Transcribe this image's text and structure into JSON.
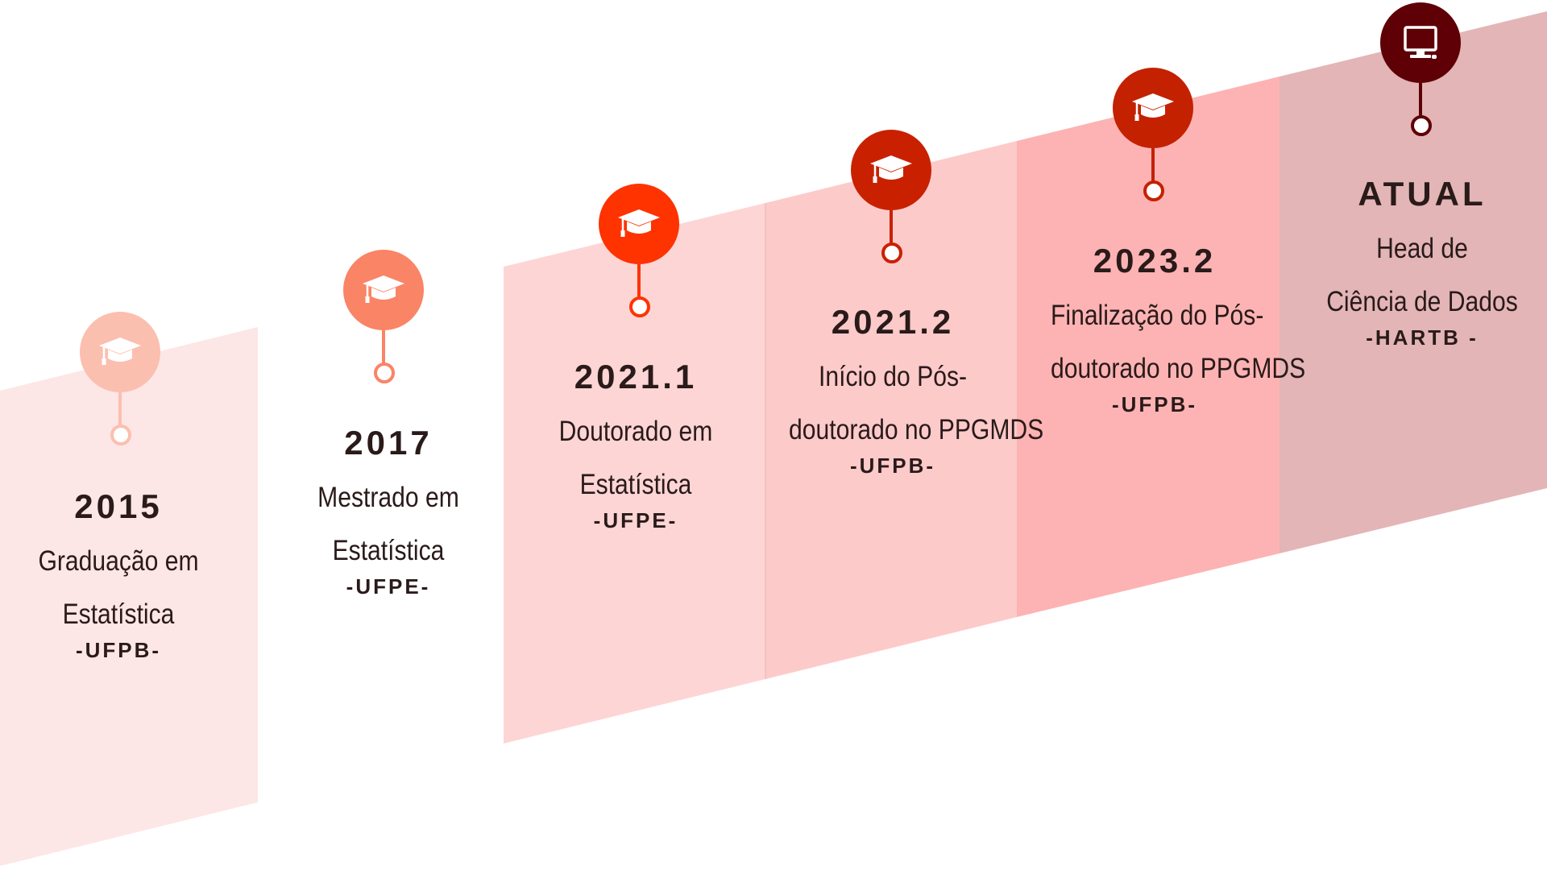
{
  "milestones": [
    {
      "year": "2015",
      "desc_line1": "Graduação em",
      "desc_line2": "Estatística",
      "institution": "-UFPB-",
      "icon": "graduation-cap-icon",
      "color": "#fbbfb0",
      "band_color": "#fde6e6"
    },
    {
      "year": "2017",
      "desc_line1": "Mestrado em",
      "desc_line2": "Estatística",
      "institution": "-UFPE-",
      "icon": "graduation-cap-icon",
      "color": "#fa8466",
      "band_color": "#ffffff"
    },
    {
      "year": "2021.1",
      "desc_line1": "Doutorado em",
      "desc_line2": "Estatística",
      "institution": "-UFPE-",
      "icon": "graduation-cap-icon",
      "color": "#fe3300",
      "band_color": "#fdd5d5"
    },
    {
      "year": "2021.2",
      "desc_line1": "Início do Pós-",
      "desc_line2": "doutorado no PPGMDS",
      "institution": "-UFPB-",
      "icon": "graduation-cap-icon",
      "color": "#c92100",
      "band_color": "#fdcaca"
    },
    {
      "year": "2023.2",
      "desc_line1": "Finalização do Pós-",
      "desc_line2": "doutorado no PPGMDS",
      "institution": "-UFPB-",
      "icon": "graduation-cap-icon",
      "color": "#c42100",
      "band_color": "#fdb3b3"
    },
    {
      "year": "ATUAL",
      "desc_line1": "Head de",
      "desc_line2": "Ciência de Dados",
      "institution": "-HARTB -",
      "icon": "computer-monitor-icon",
      "color": "#5e0005",
      "band_color": "#e3b5b7"
    }
  ]
}
